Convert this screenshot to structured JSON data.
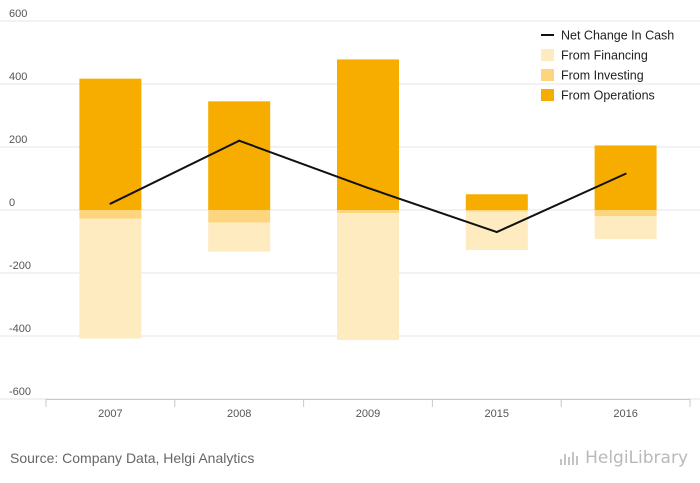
{
  "chart_data": {
    "type": "bar",
    "stacked": true,
    "categories": [
      "2007",
      "2008",
      "2009",
      "2015",
      "2016"
    ],
    "series": [
      {
        "name": "From Operations",
        "kind": "bar",
        "color": "#f7ad00",
        "values": [
          417,
          345,
          478,
          50,
          205
        ]
      },
      {
        "name": "From Investing",
        "kind": "bar",
        "color": "#fdd57f",
        "values": [
          -28,
          -40,
          -10,
          -5,
          -20
        ]
      },
      {
        "name": "From Financing",
        "kind": "bar",
        "color": "#feebc0",
        "values": [
          -380,
          -92,
          -403,
          -122,
          -72
        ]
      },
      {
        "name": "Net Change In Cash",
        "kind": "line",
        "color": "#111111",
        "values": [
          20,
          220,
          70,
          -70,
          115
        ]
      }
    ],
    "ylim": [
      -600,
      600
    ],
    "yticks": [
      "600",
      "400",
      "200",
      "0",
      "-200",
      "-400",
      "-600"
    ],
    "ytick_values": [
      600,
      400,
      200,
      0,
      -200,
      -400,
      -600
    ],
    "legend": [
      "Net Change In Cash",
      "From Financing",
      "From Investing",
      "From Operations"
    ],
    "legend_position": "top-right",
    "grid": true,
    "title": "",
    "xlabel": "",
    "ylabel": ""
  },
  "footer": {
    "source": "Source: Company Data, Helgi Analytics",
    "brand": "HelgiLibrary"
  }
}
